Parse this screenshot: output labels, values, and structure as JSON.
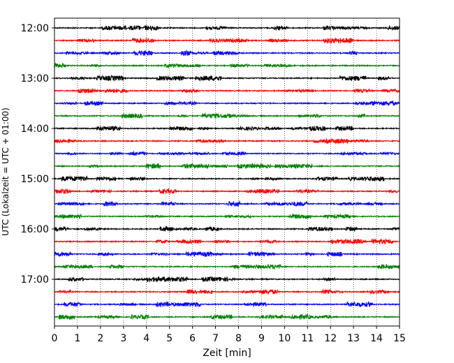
{
  "chart_data": {
    "type": "line",
    "title": "",
    "xlabel": "Zeit  [min]",
    "ylabel": "UTC (Lokalzeit = UTC + 01:00)",
    "xlim": [
      0,
      15
    ],
    "x_ticks": [
      0,
      1,
      2,
      3,
      4,
      5,
      6,
      7,
      8,
      9,
      10,
      11,
      12,
      13,
      14,
      15
    ],
    "x_tick_labels": [
      "0",
      "1",
      "2",
      "3",
      "4",
      "5",
      "6",
      "7",
      "8",
      "9",
      "10",
      "11",
      "12",
      "13",
      "14",
      "15"
    ],
    "y_tick_labels": [
      "12:00",
      "13:00",
      "14:00",
      "15:00",
      "16:00",
      "17:00"
    ],
    "vertical_grid": true,
    "trace_colors": [
      "#000000",
      "#ff0000",
      "#0000ff",
      "#008000"
    ],
    "traces": [
      {
        "start": "12:00",
        "color": "#000000"
      },
      {
        "start": "12:15",
        "color": "#ff0000"
      },
      {
        "start": "12:30",
        "color": "#0000ff"
      },
      {
        "start": "12:45",
        "color": "#008000"
      },
      {
        "start": "13:00",
        "color": "#000000"
      },
      {
        "start": "13:15",
        "color": "#ff0000"
      },
      {
        "start": "13:30",
        "color": "#0000ff"
      },
      {
        "start": "13:45",
        "color": "#008000"
      },
      {
        "start": "14:00",
        "color": "#000000"
      },
      {
        "start": "14:15",
        "color": "#ff0000"
      },
      {
        "start": "14:30",
        "color": "#0000ff"
      },
      {
        "start": "14:45",
        "color": "#008000"
      },
      {
        "start": "15:00",
        "color": "#000000"
      },
      {
        "start": "15:15",
        "color": "#ff0000"
      },
      {
        "start": "15:30",
        "color": "#0000ff"
      },
      {
        "start": "15:45",
        "color": "#008000"
      },
      {
        "start": "16:00",
        "color": "#000000"
      },
      {
        "start": "16:15",
        "color": "#ff0000"
      },
      {
        "start": "16:30",
        "color": "#0000ff"
      },
      {
        "start": "16:45",
        "color": "#008000"
      },
      {
        "start": "17:00",
        "color": "#000000"
      },
      {
        "start": "17:15",
        "color": "#ff0000"
      },
      {
        "start": "17:30",
        "color": "#0000ff"
      },
      {
        "start": "17:45",
        "color": "#008000"
      }
    ]
  }
}
